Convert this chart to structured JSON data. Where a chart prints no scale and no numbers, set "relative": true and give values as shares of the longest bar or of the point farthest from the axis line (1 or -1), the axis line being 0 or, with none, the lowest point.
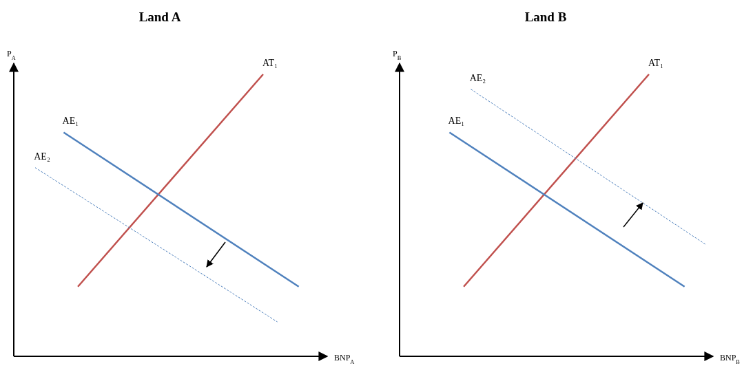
{
  "chart_data": [
    {
      "type": "line",
      "title": "Land A",
      "xlabel": "BNP$_{A}$",
      "ylabel": "P$_{A}$",
      "relative": true,
      "categories": [
        null,
        null,
        null,
        null,
        null,
        null,
        null,
        null,
        null,
        null,
        null,
        null,
        null,
        null,
        null,
        null,
        null,
        null,
        null,
        null,
        null,
        null,
        null,
        null,
        null,
        null,
        null,
        null,
        null,
        null,
        null,
        null,
        null,
        null,
        null,
        null,
        null,
        null,
        null,
        null,
        null,
        null,
        null,
        null,
        null
      ],
      "series": [
        {
          "name": "AT₁",
          "color": "#c0504d",
          "line_style": "solid",
          "values": [
            null,
            null,
            null,
            null,
            null,
            null,
            null,
            null,
            null,
            0.247,
            null,
            null,
            null,
            null,
            null,
            null,
            null,
            null,
            null,
            null,
            null,
            null,
            null,
            null,
            null,
            null,
            null,
            null,
            null,
            null,
            null,
            null,
            null,
            null,
            null,
            1,
            null,
            null,
            null,
            null,
            null,
            null,
            null,
            null,
            null
          ]
        },
        {
          "name": "AE₁",
          "color": "#4f81bd",
          "line_style": "solid",
          "values": [
            null,
            null,
            null,
            null,
            null,
            null,
            null,
            0.794,
            null,
            null,
            null,
            null,
            null,
            null,
            null,
            null,
            null,
            null,
            null,
            null,
            null,
            null,
            null,
            null,
            null,
            null,
            null,
            null,
            null,
            null,
            null,
            null,
            null,
            null,
            null,
            null,
            null,
            null,
            null,
            null,
            0.247,
            null,
            null,
            null,
            null
          ]
        },
        {
          "name": "AE₂",
          "color": "#4f81bd",
          "line_style": "dashed",
          "values": [
            null,
            null,
            null,
            0.669,
            null,
            null,
            null,
            null,
            null,
            null,
            null,
            null,
            null,
            null,
            null,
            null,
            null,
            null,
            null,
            null,
            null,
            null,
            null,
            null,
            null,
            null,
            null,
            null,
            null,
            null,
            null,
            null,
            null,
            null,
            null,
            null,
            null,
            0.122,
            null,
            null,
            null,
            null,
            null,
            null,
            null
          ]
        }
      ]
    },
    {
      "type": "line",
      "title": "Land B",
      "xlabel": "BNP$_{B}$",
      "ylabel": "P$_{B}$",
      "relative": true,
      "categories": [
        null,
        null,
        null,
        null,
        null,
        null,
        null,
        null,
        null,
        null,
        null,
        null,
        null,
        null,
        null,
        null,
        null,
        null,
        null,
        null,
        null,
        null,
        null,
        null,
        null,
        null,
        null,
        null,
        null,
        null,
        null,
        null,
        null,
        null,
        null,
        null,
        null,
        null,
        null,
        null,
        null,
        null,
        null,
        null,
        null
      ],
      "series": [
        {
          "name": "AT₁",
          "color": "#c0504d",
          "line_style": "solid",
          "values": [
            null,
            null,
            null,
            null,
            null,
            null,
            null,
            null,
            null,
            0.247,
            null,
            null,
            null,
            null,
            null,
            null,
            null,
            null,
            null,
            null,
            null,
            null,
            null,
            null,
            null,
            null,
            null,
            null,
            null,
            null,
            null,
            null,
            null,
            null,
            null,
            1,
            null,
            null,
            null,
            null,
            null,
            null,
            null,
            null,
            null
          ]
        },
        {
          "name": "AE₁",
          "color": "#4f81bd",
          "line_style": "solid",
          "values": [
            null,
            null,
            null,
            null,
            null,
            null,
            null,
            0.794,
            null,
            null,
            null,
            null,
            null,
            null,
            null,
            null,
            null,
            null,
            null,
            null,
            null,
            null,
            null,
            null,
            null,
            null,
            null,
            null,
            null,
            null,
            null,
            null,
            null,
            null,
            null,
            null,
            null,
            null,
            null,
            null,
            0.247,
            null,
            null,
            null,
            null
          ]
        },
        {
          "name": "AE₂",
          "color": "#4f81bd",
          "line_style": "dashed",
          "values": [
            null,
            null,
            null,
            null,
            null,
            null,
            null,
            null,
            null,
            null,
            0.947,
            null,
            null,
            null,
            null,
            null,
            null,
            null,
            null,
            null,
            null,
            null,
            null,
            null,
            null,
            null,
            null,
            null,
            null,
            null,
            null,
            null,
            null,
            null,
            null,
            null,
            null,
            null,
            null,
            null,
            null,
            null,
            null,
            0.396,
            null
          ]
        }
      ]
    }
  ]
}
